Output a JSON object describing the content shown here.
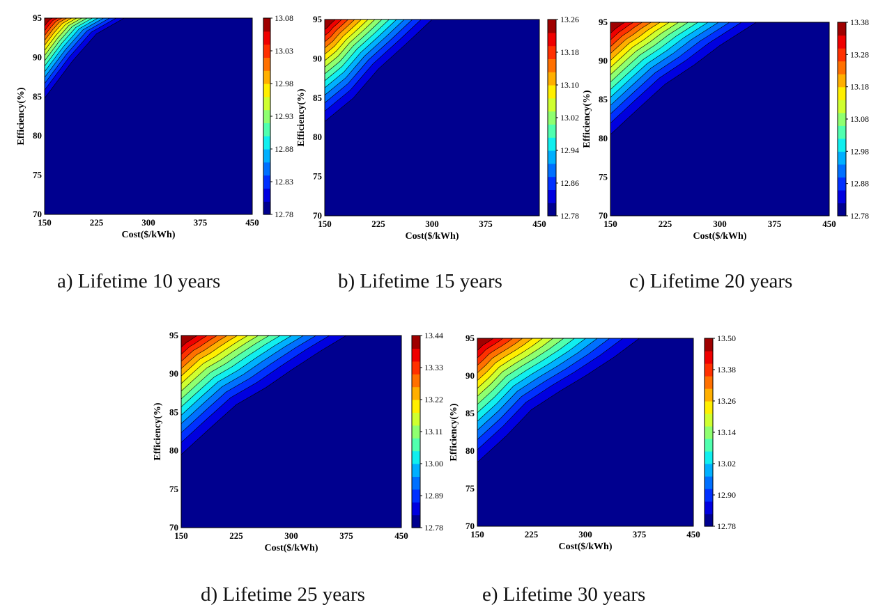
{
  "chart_data": [
    {
      "type": "heatmap",
      "caption": "a) Lifetime 10 years",
      "xlabel": "Cost($/kWh)",
      "ylabel": "Efficiency(%)",
      "xlim": [
        150,
        450
      ],
      "ylim": [
        70,
        95
      ],
      "xticks": [
        "150",
        "225",
        "300",
        "375",
        "450"
      ],
      "yticks": [
        "70",
        "75",
        "80",
        "85",
        "90",
        "95"
      ],
      "colorbar": {
        "min": 12.78,
        "max": 13.08,
        "ticks": [
          "12.78",
          "12.83",
          "12.88",
          "12.93",
          "12.98",
          "13.03",
          "13.08"
        ]
      },
      "baseline_boundary": [
        [
          150,
          84.8
        ],
        [
          190,
          89.5
        ],
        [
          225,
          93
        ],
        [
          265,
          95
        ]
      ]
    },
    {
      "type": "heatmap",
      "caption": "b) Lifetime 15 years",
      "xlabel": "Cost($/kWh)",
      "ylabel": "Efficiency(%)",
      "xlim": [
        150,
        450
      ],
      "ylim": [
        70,
        95
      ],
      "xticks": [
        "150",
        "225",
        "300",
        "375",
        "450"
      ],
      "yticks": [
        "70",
        "75",
        "80",
        "85",
        "90",
        "95"
      ],
      "colorbar": {
        "min": 12.78,
        "max": 13.26,
        "ticks": [
          "12.78",
          "12.86",
          "12.94",
          "13.02",
          "13.10",
          "13.18",
          "13.26"
        ]
      },
      "baseline_boundary": [
        [
          150,
          82
        ],
        [
          190,
          85
        ],
        [
          225,
          88.7
        ],
        [
          265,
          92
        ],
        [
          300,
          95
        ]
      ]
    },
    {
      "type": "heatmap",
      "caption": "c) Lifetime 20 years",
      "xlabel": "Cost($/kWh)",
      "ylabel": "Efficiency(%)",
      "xlim": [
        150,
        450
      ],
      "ylim": [
        70,
        95
      ],
      "xticks": [
        "150",
        "225",
        "300",
        "375",
        "450"
      ],
      "yticks": [
        "70",
        "75",
        "80",
        "85",
        "90",
        "95"
      ],
      "colorbar": {
        "min": 12.78,
        "max": 13.38,
        "ticks": [
          "12.78",
          "12.88",
          "12.98",
          "13.08",
          "13.18",
          "13.28",
          "13.38"
        ]
      },
      "baseline_boundary": [
        [
          150,
          80.5
        ],
        [
          190,
          84
        ],
        [
          225,
          87
        ],
        [
          265,
          89.5
        ],
        [
          300,
          92
        ],
        [
          350,
          95
        ]
      ]
    },
    {
      "type": "heatmap",
      "caption": "d) Lifetime 25 years",
      "xlabel": "Cost($/kWh)",
      "ylabel": "Efficiency(%)",
      "xlim": [
        150,
        450
      ],
      "ylim": [
        70,
        95
      ],
      "xticks": [
        "150",
        "225",
        "300",
        "375",
        "450"
      ],
      "yticks": [
        "70",
        "75",
        "80",
        "85",
        "90",
        "95"
      ],
      "colorbar": {
        "min": 12.78,
        "max": 13.44,
        "ticks": [
          "12.78",
          "12.89",
          "13.00",
          "13.11",
          "13.22",
          "13.33",
          "13.44"
        ]
      },
      "baseline_boundary": [
        [
          150,
          79.5
        ],
        [
          190,
          83
        ],
        [
          225,
          86
        ],
        [
          265,
          88.2
        ],
        [
          300,
          90.5
        ],
        [
          340,
          93
        ],
        [
          375,
          95
        ]
      ]
    },
    {
      "type": "heatmap",
      "caption": "e) Lifetime 30 years",
      "xlabel": "Cost($/kWh)",
      "ylabel": "Efficiency(%)",
      "xlim": [
        150,
        450
      ],
      "ylim": [
        70,
        95
      ],
      "xticks": [
        "150",
        "225",
        "300",
        "375",
        "450"
      ],
      "yticks": [
        "70",
        "75",
        "80",
        "85",
        "90",
        "95"
      ],
      "colorbar": {
        "min": 12.78,
        "max": 13.5,
        "ticks": [
          "12.78",
          "12.90",
          "13.02",
          "13.14",
          "13.26",
          "13.38",
          "13.50"
        ]
      },
      "baseline_boundary": [
        [
          150,
          78.5
        ],
        [
          190,
          82
        ],
        [
          225,
          85.5
        ],
        [
          265,
          88
        ],
        [
          300,
          90
        ],
        [
          340,
          92.5
        ],
        [
          375,
          95
        ]
      ]
    }
  ],
  "palette": [
    "#00008F",
    "#0000DF",
    "#0030FF",
    "#0070FF",
    "#00B0FF",
    "#10EFEF",
    "#50FFAF",
    "#8FFF70",
    "#CFFF30",
    "#FFEF00",
    "#FFAF00",
    "#FF7000",
    "#FF3000",
    "#EF0000",
    "#9F0000"
  ]
}
